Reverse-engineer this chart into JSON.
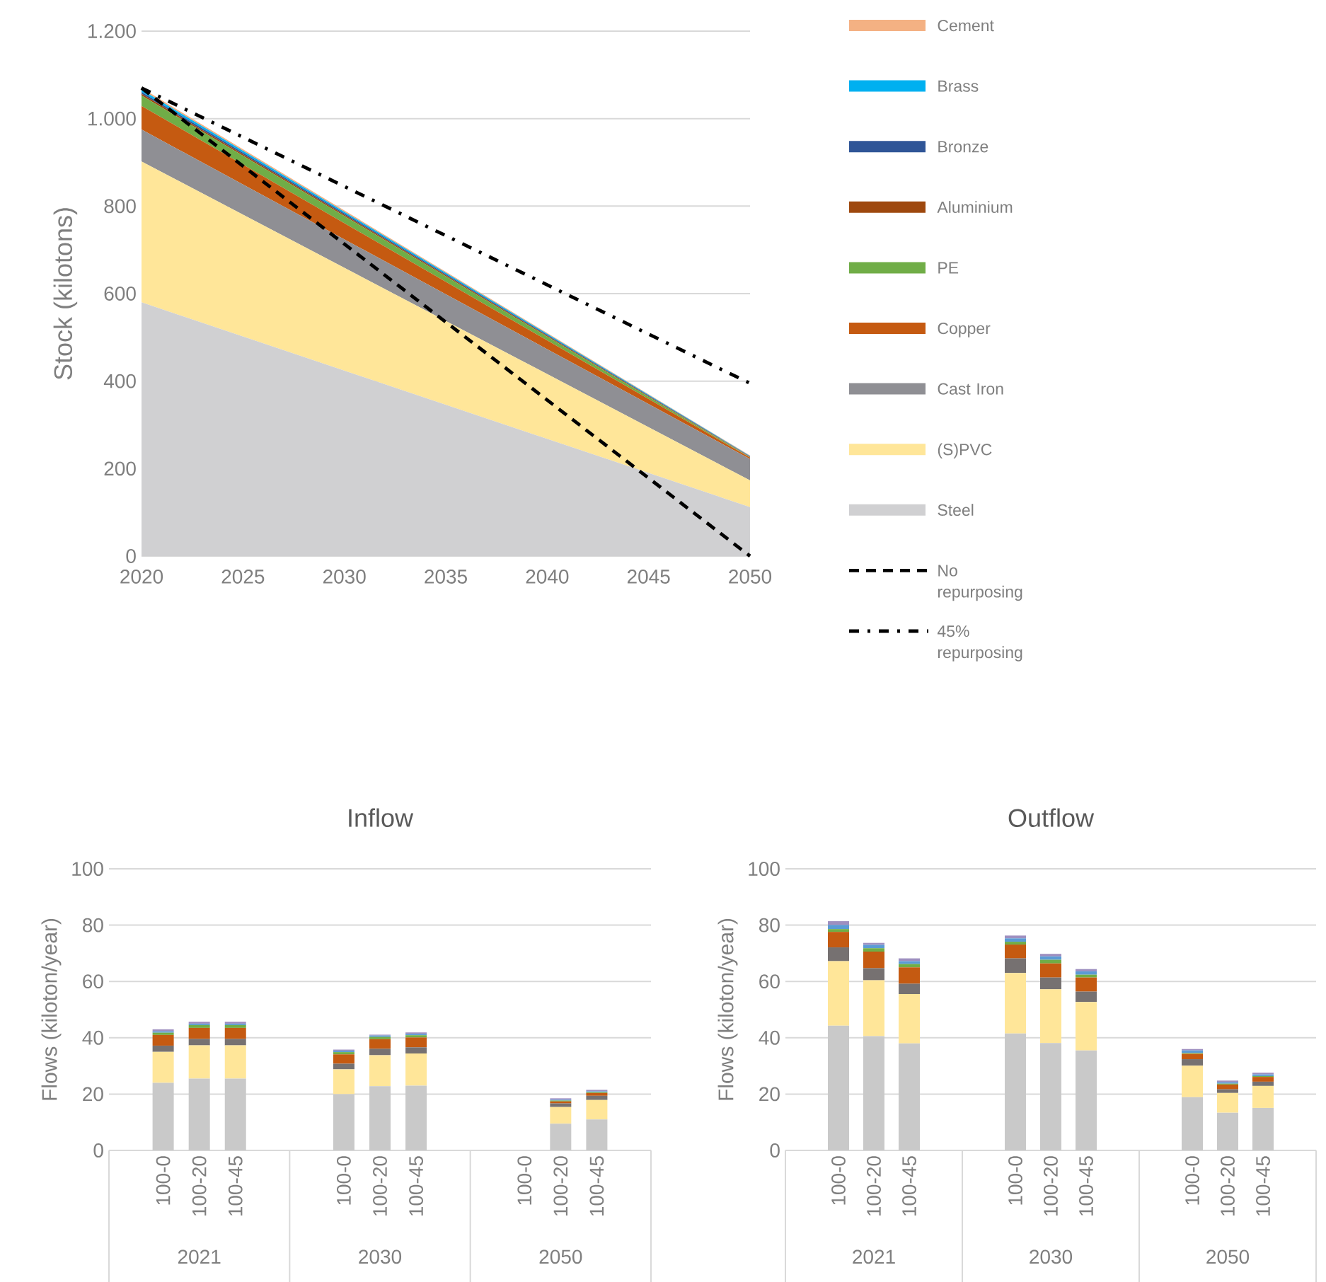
{
  "chart_data": [
    {
      "type": "area",
      "stacked": true,
      "ylabel": "Stock (kilotons)",
      "x": [
        2020,
        2050
      ],
      "xlim": [
        2020,
        2050
      ],
      "xticks": [
        2020,
        2025,
        2030,
        2035,
        2040,
        2045,
        2050
      ],
      "ylim": [
        0,
        1200
      ],
      "yticks": [
        0,
        200,
        400,
        600,
        800,
        {
          "value": 1000,
          "label": "1.000"
        },
        {
          "value": 1200,
          "label": "1.200"
        }
      ],
      "grid": "y",
      "legend": "right",
      "series": [
        {
          "name": "Steel",
          "color": "#d0d0d2",
          "values": [
            580,
            112
          ]
        },
        {
          "name": "(S)PVC",
          "color": "#ffe699",
          "values": [
            322,
            61
          ]
        },
        {
          "name": "Cast Iron",
          "color": "#8f8f94",
          "values": [
            73,
            49
          ]
        },
        {
          "name": "Copper",
          "color": "#c55a11",
          "values": [
            54,
            3
          ]
        },
        {
          "name": "PE",
          "color": "#70ad47",
          "values": [
            24,
            1
          ]
        },
        {
          "name": "Aluminium",
          "color": "#9e480e",
          "values": [
            4,
            1
          ]
        },
        {
          "name": "Bronze",
          "color": "#2f5597",
          "values": [
            4,
            1
          ]
        },
        {
          "name": "Brass",
          "color": "#00b0f0",
          "values": [
            5,
            1
          ]
        },
        {
          "name": "Cement",
          "color": "#f4b183",
          "values": [
            4,
            1
          ]
        },
        {
          "name": "No repurposing",
          "type": "line",
          "color": "#000000",
          "line_style": "dashed",
          "values": [
            1070,
            0
          ]
        },
        {
          "name": "45% repurposing",
          "type": "line",
          "color": "#000000",
          "line_style": "dashdot",
          "values": [
            1070,
            395
          ]
        }
      ]
    },
    {
      "type": "bar",
      "stacked": true,
      "title": "Inflow",
      "ylabel": "Flows (kiloton/year)",
      "categories": [
        null,
        "100-0",
        "100-20",
        "100-45",
        null,
        null,
        "100-0",
        "100-20",
        "100-45",
        null,
        null,
        "100-0",
        "100-20",
        "100-45",
        null
      ],
      "ylim": [
        0,
        100
      ],
      "yticks": [
        0,
        20,
        40,
        60,
        80,
        100
      ],
      "grid": "y",
      "annotations": [
        "2021",
        "2030",
        "2050"
      ],
      "series": [
        {
          "color": "#c9c9c9",
          "values": [
            null,
            24,
            25.5,
            25.5,
            null,
            null,
            20,
            22.8,
            23,
            null,
            null,
            null,
            9.5,
            11,
            null
          ]
        },
        {
          "color": "#ffe699",
          "values": [
            null,
            11,
            11.8,
            11.8,
            null,
            null,
            8.8,
            11,
            11.4,
            null,
            null,
            null,
            5.9,
            6.9,
            null
          ]
        },
        {
          "color": "#767171",
          "values": [
            null,
            2.2,
            2.3,
            2.3,
            null,
            null,
            2,
            2.3,
            2.2,
            null,
            null,
            null,
            1.3,
            1.5,
            null
          ]
        },
        {
          "color": "#c55a11",
          "values": [
            null,
            3.8,
            3.9,
            3.9,
            null,
            null,
            3.3,
            3.4,
            3.5,
            null,
            null,
            null,
            0.7,
            1,
            null
          ]
        },
        {
          "color": "#70ad47",
          "values": [
            null,
            0.8,
            1,
            1,
            null,
            null,
            0.8,
            0.8,
            0.8,
            null,
            null,
            null,
            0.3,
            0.3,
            null
          ]
        },
        {
          "color": "#5b9bd5",
          "values": [
            null,
            0.5,
            0.5,
            0.5,
            null,
            null,
            0.5,
            0.5,
            0.5,
            null,
            null,
            null,
            0.3,
            0.3,
            null
          ]
        },
        {
          "color": "#9e8fc0",
          "values": [
            null,
            0.7,
            0.7,
            0.7,
            null,
            null,
            0.4,
            0.3,
            0.5,
            null,
            null,
            null,
            0.5,
            0.5,
            null
          ]
        }
      ]
    },
    {
      "type": "bar",
      "stacked": true,
      "title": "Outflow",
      "ylabel": "Flows (kiloton/year)",
      "categories": [
        null,
        "100-0",
        "100-20",
        "100-45",
        null,
        null,
        "100-0",
        "100-20",
        "100-45",
        null,
        null,
        "100-0",
        "100-20",
        "100-45",
        null
      ],
      "ylim": [
        0,
        100
      ],
      "yticks": [
        0,
        20,
        40,
        60,
        80,
        100
      ],
      "grid": "y",
      "annotations": [
        "2021",
        "2030",
        "2050"
      ],
      "series": [
        {
          "color": "#c9c9c9",
          "values": [
            null,
            44.3,
            40.6,
            38,
            null,
            null,
            41.5,
            38.1,
            35.5,
            null,
            null,
            18.9,
            13.4,
            15.1,
            null
          ]
        },
        {
          "color": "#ffe699",
          "values": [
            null,
            22.9,
            19.8,
            17.5,
            null,
            null,
            21.5,
            19.1,
            17.2,
            null,
            null,
            11.2,
            7,
            7.8,
            null
          ]
        },
        {
          "color": "#767171",
          "values": [
            null,
            4.9,
            4.3,
            3.7,
            null,
            null,
            5.2,
            4.2,
            3.7,
            null,
            null,
            2.3,
            1.3,
            1.5,
            null
          ]
        },
        {
          "color": "#c55a11",
          "values": [
            null,
            5.5,
            5.9,
            5.8,
            null,
            null,
            4.9,
            5,
            5,
            null,
            null,
            1.9,
            1.7,
            1.7,
            null
          ]
        },
        {
          "color": "#70ad47",
          "values": [
            null,
            1,
            1.2,
            1.2,
            null,
            null,
            1,
            1.3,
            1,
            null,
            null,
            0.3,
            0.3,
            0.3,
            null
          ]
        },
        {
          "color": "#5b9bd5",
          "values": [
            null,
            1.5,
            1.2,
            1,
            null,
            null,
            1.2,
            1.2,
            1.2,
            null,
            null,
            0.9,
            0.5,
            0.6,
            null
          ]
        },
        {
          "color": "#9e8fc0",
          "values": [
            null,
            1.3,
            0.7,
            1,
            null,
            null,
            1,
            0.9,
            0.8,
            null,
            null,
            0.5,
            0.6,
            0.6,
            null
          ]
        }
      ]
    }
  ]
}
